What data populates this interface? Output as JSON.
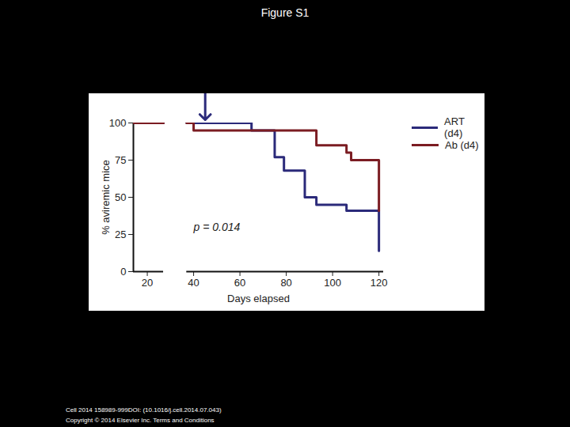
{
  "chart_data": {
    "type": "line",
    "title": "Figure S1",
    "x_label": "Days elapsed",
    "y_label": "% aviremic mice",
    "xlim": [
      14,
      122
    ],
    "xticks": [
      20,
      40,
      60,
      80,
      100,
      120
    ],
    "ylim": [
      0,
      100
    ],
    "yticks": [
      0,
      25,
      50,
      75,
      100
    ],
    "axis_break": [
      27,
      37
    ],
    "arrow_x": 45,
    "line_style": "step",
    "series": [
      {
        "name": "ART (d4)",
        "color": "#2b2a7a",
        "x": [
          14,
          27,
          27,
          37,
          65,
          75,
          79,
          88,
          93,
          106,
          120
        ],
        "values": [
          100,
          100,
          null,
          100,
          95,
          77,
          68,
          50,
          45,
          41,
          14
        ]
      },
      {
        "name": "Ab (d4)",
        "color": "#7b1c22",
        "x": [
          14,
          27,
          27,
          37,
          40,
          93,
          106,
          108,
          120
        ],
        "values": [
          100,
          100,
          null,
          100,
          95,
          85,
          80,
          75,
          41
        ]
      }
    ],
    "annotations": [
      {
        "text": "p = 0.014",
        "x": 40,
        "y": 30
      }
    ],
    "footer": [
      "Cell 2014 158989-999DOI: (10.1016/j.cell.2014.07.043)",
      "Copyright © 2014 Elsevier Inc. Terms and Conditions"
    ]
  }
}
